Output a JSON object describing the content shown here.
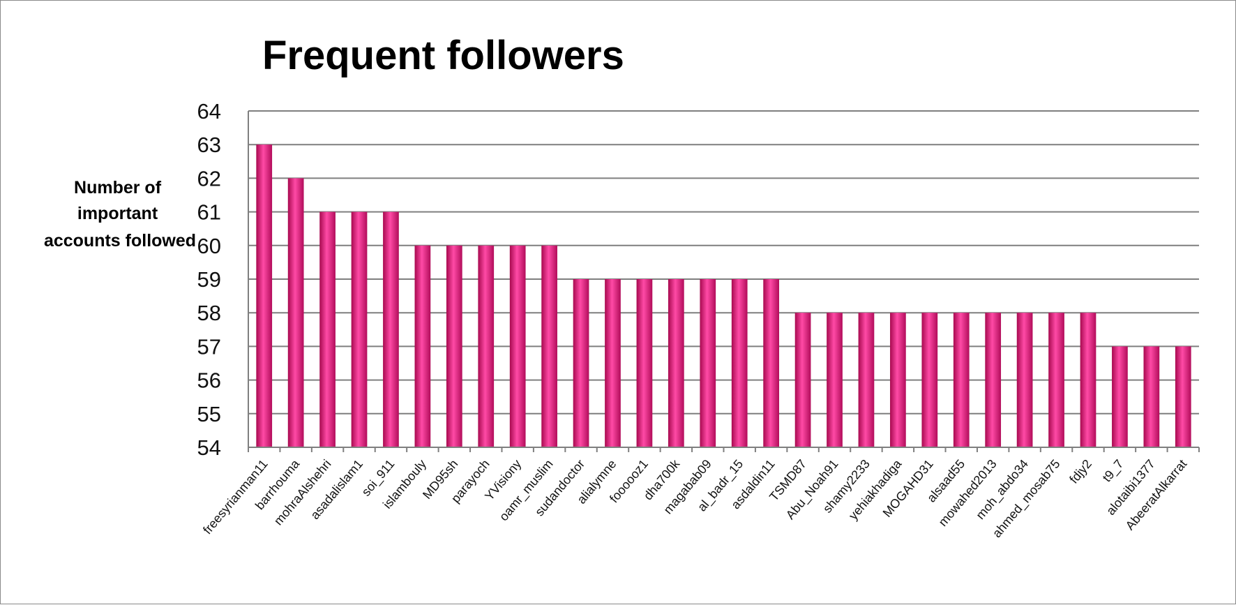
{
  "chart_data": {
    "type": "bar",
    "title": "Frequent followers",
    "ylabel_lines": [
      "Number of",
      "important",
      "accounts followed"
    ],
    "xlabel": "",
    "ylim": [
      54,
      64
    ],
    "yticks": [
      54,
      55,
      56,
      57,
      58,
      59,
      60,
      61,
      62,
      63,
      64
    ],
    "grid": true,
    "legend": "none",
    "bar_color": "#e4157a",
    "categories": [
      "freesyrianman11",
      "barrhouma",
      "mohraAlshehri",
      "asadalislam1",
      "soi_911",
      "islambouly",
      "MD95sh",
      "parayoch",
      "YVisiony",
      "oamr_muslim",
      "sudandoctor",
      "alialymne",
      "foooooz1",
      "dha700k",
      "magabab09",
      "al_badr_15",
      "asdaldin11",
      "TSMD87",
      "Abu_Noah91",
      "shamy2233",
      "yehiakhadiga",
      "MOGAHD31",
      "alsaad55",
      "mowahed2013",
      "moh_abdo34",
      "ahmed_mosab75",
      "fdjy2",
      "t9_7",
      "alotaibi1377",
      "AbeeratAlkarrat"
    ],
    "values": [
      63,
      62,
      61,
      61,
      61,
      60,
      60,
      60,
      60,
      60,
      59,
      59,
      59,
      59,
      59,
      59,
      59,
      58,
      58,
      58,
      58,
      58,
      58,
      58,
      58,
      58,
      58,
      57,
      57,
      57
    ]
  }
}
